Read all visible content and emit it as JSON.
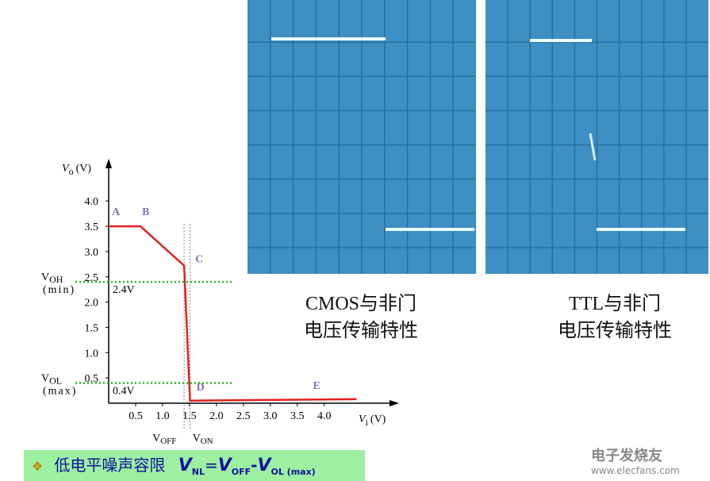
{
  "chart_data": {
    "type": "line",
    "y_label": {
      "main": "V",
      "sub": "o",
      "unit": "(V)"
    },
    "x_label": {
      "main": "V",
      "sub": "i",
      "unit": "(V)"
    },
    "x": [
      0,
      0.59,
      1.4,
      1.51,
      4.6
    ],
    "values": [
      3.5,
      3.5,
      2.72,
      0.05,
      0.08
    ],
    "color": "#e02020",
    "point_labels": [
      "A",
      "B",
      "C",
      "D",
      "E"
    ],
    "xlim": [
      0,
      5.3
    ],
    "ylim": [
      0,
      4.6
    ],
    "xticks": [
      0.5,
      {
        "value": 1,
        "label": "1.0"
      },
      1.5,
      {
        "value": 2,
        "label": "2.0"
      },
      2.5,
      {
        "value": 3,
        "label": "3.0"
      },
      3.5,
      {
        "value": 4,
        "label": "4.0"
      }
    ],
    "yticks": [
      0.5,
      {
        "value": 1,
        "label": "1.0"
      },
      1.5,
      {
        "value": 2,
        "label": "2.0"
      },
      2.5,
      {
        "value": 3,
        "label": "3.0"
      },
      3.5,
      {
        "value": 4,
        "label": "4.0"
      }
    ],
    "reference_lines": [
      {
        "axis": "y",
        "value": 2.4,
        "label": "2.4V",
        "name": "V",
        "sub": "OH",
        "note": "(min)"
      },
      {
        "axis": "y",
        "value": 0.4,
        "label": "0.4V",
        "name": "V",
        "sub": "OL",
        "note": "(max)"
      },
      {
        "axis": "x",
        "value": 1.4,
        "name": "V",
        "sub": "OFF"
      },
      {
        "axis": "x",
        "value": 1.51,
        "name": "V",
        "sub": "ON"
      }
    ]
  },
  "captions": [
    {
      "title": "CMOS与非门",
      "subtitle": "电压传输特性"
    },
    {
      "title": "TTL与非门",
      "subtitle": "电压传输特性"
    }
  ],
  "formula": {
    "bullet": "❖",
    "text": "低电平噪声容限",
    "lhs": "V",
    "lhs_sub": "NL",
    "eq": "=",
    "t1": "V",
    "t1_sub": "OFF",
    "minus": "-",
    "t2": "V",
    "t2_sub": "OL (max)"
  },
  "watermark": {
    "brand": "电子发烧友",
    "url": "www.elecfans.com"
  }
}
